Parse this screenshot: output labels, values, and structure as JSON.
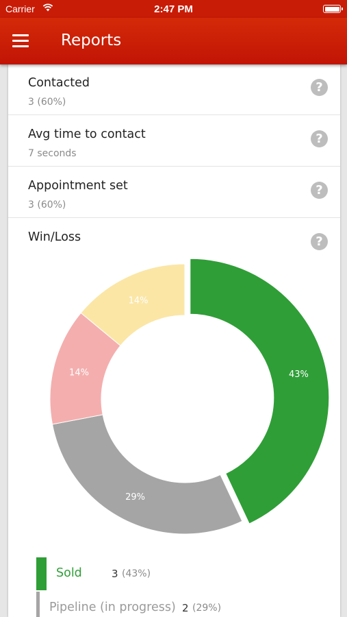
{
  "status_bar": {
    "carrier": "Carrier",
    "time": "2:47 PM"
  },
  "app_bar": {
    "title": "Reports"
  },
  "metrics": [
    {
      "title": "Contacted",
      "value": "3 (60%)"
    },
    {
      "title": "Avg time to contact",
      "value": "7 seconds"
    },
    {
      "title": "Appointment set",
      "value": "3 (60%)"
    },
    {
      "title": "Win/Loss",
      "value": ""
    }
  ],
  "help_glyph": "?",
  "chart_data": {
    "type": "pie",
    "variant": "donut",
    "title": "Win/Loss",
    "slices": [
      {
        "label": "Sold",
        "value": 43,
        "text": "43%",
        "color": "#2f9e37"
      },
      {
        "label": "Pipeline (in progress)",
        "value": 29,
        "text": "29%",
        "color": "#a6a5a5"
      },
      {
        "label": "",
        "value": 14,
        "text": "14%",
        "color": "#f4aeae"
      },
      {
        "label": "",
        "value": 14,
        "text": "14%",
        "color": "#fbe6a6"
      }
    ]
  },
  "legend": [
    {
      "name": "Sold",
      "count": "3",
      "pct": "(43%)",
      "color": "#2f9e37"
    },
    {
      "name": "Pipeline (in progress)",
      "count": "2",
      "pct": "(29%)",
      "color": "#a6a5a5"
    }
  ],
  "colors": {
    "app_bar": "#c81c07",
    "sold": "#2f9e37",
    "pipeline": "#a6a5a5"
  }
}
